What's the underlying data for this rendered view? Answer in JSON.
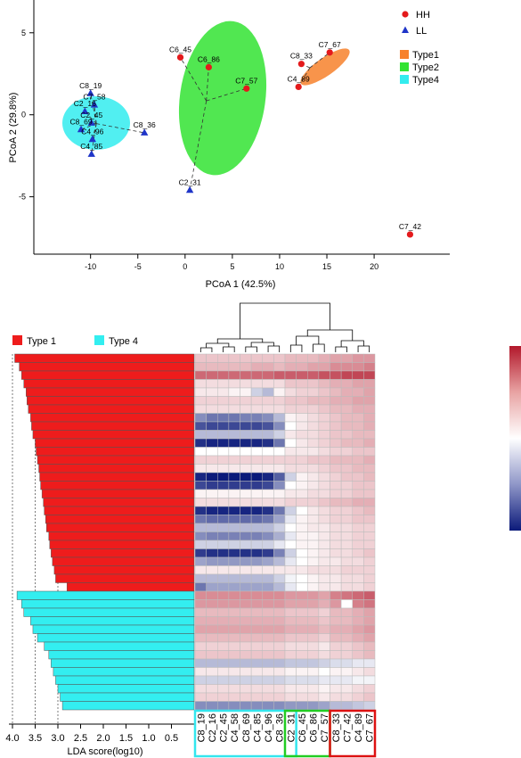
{
  "chart_data": [
    {
      "type": "scatter",
      "title": "",
      "xlabel": "PCoA 1 (42.5%)",
      "ylabel": "PCoA 2 (29.8%)",
      "xlim": [
        -16,
        28
      ],
      "ylim": [
        -8.5,
        7
      ],
      "xticks": [
        -10,
        -5,
        0,
        5,
        10,
        15,
        20
      ],
      "yticks": [
        -5,
        0,
        5
      ],
      "legend_series": [
        {
          "name": "HH",
          "marker": "circle",
          "color": "#e41a1c"
        },
        {
          "name": "LL",
          "marker": "triangle",
          "color": "#1f35c8"
        }
      ],
      "legend_groups": [
        {
          "name": "Type1",
          "color": "#f7812c"
        },
        {
          "name": "Type2",
          "color": "#33e333"
        },
        {
          "name": "Type4",
          "color": "#33ecee"
        }
      ],
      "points": [
        {
          "label": "C6_45",
          "x": -0.5,
          "y": 3.5,
          "series": "HH"
        },
        {
          "label": "C6_86",
          "x": 2.5,
          "y": 2.9,
          "series": "HH"
        },
        {
          "label": "C7_57",
          "x": 6.5,
          "y": 1.6,
          "series": "HH"
        },
        {
          "label": "C8_33",
          "x": 12.3,
          "y": 3.1,
          "series": "HH"
        },
        {
          "label": "C7_67",
          "x": 15.3,
          "y": 3.8,
          "series": "HH"
        },
        {
          "label": "C4_89",
          "x": 12,
          "y": 1.7,
          "series": "HH"
        },
        {
          "label": "C7_42",
          "x": 23.8,
          "y": -7.3,
          "series": "HH"
        },
        {
          "label": "C8_19",
          "x": -10,
          "y": 1.3,
          "series": "LL"
        },
        {
          "label": "C7_58",
          "x": -9.6,
          "y": 0.6,
          "series": "LL"
        },
        {
          "label": "C2_16",
          "x": -10.6,
          "y": 0.2,
          "series": "LL"
        },
        {
          "label": "C2_45",
          "x": -9.9,
          "y": -0.5,
          "series": "LL"
        },
        {
          "label": "C8_69",
          "x": -11,
          "y": -0.9,
          "series": "LL"
        },
        {
          "label": "C4_96",
          "x": -9.8,
          "y": -1.5,
          "series": "LL"
        },
        {
          "label": "C4_85",
          "x": -9.9,
          "y": -2.4,
          "series": "LL"
        },
        {
          "label": "C8_36",
          "x": -4.3,
          "y": -1.1,
          "series": "LL"
        },
        {
          "label": "C2_31",
          "x": 0.5,
          "y": -4.6,
          "series": "LL"
        }
      ]
    },
    {
      "type": "bar",
      "orientation": "horizontal",
      "xlabel": "LDA score(log10)",
      "xlim": [
        4.0,
        0.0
      ],
      "xticks": [
        "4.0",
        "3.5",
        "3.0",
        "2.5",
        "2.0",
        "1.5",
        "1.0",
        "0.5"
      ],
      "legend": [
        {
          "name": "Type 1",
          "color": "#ee1c1c"
        },
        {
          "name": "Type 4",
          "color": "#33eef0"
        }
      ],
      "series": [
        {
          "name": "Type 1",
          "color": "#ee1c1c",
          "values": [
            3.95,
            3.85,
            3.8,
            3.75,
            3.7,
            3.68,
            3.65,
            3.6,
            3.58,
            3.55,
            3.5,
            3.48,
            3.45,
            3.42,
            3.4,
            3.38,
            3.35,
            3.32,
            3.3,
            3.27,
            3.25,
            3.2,
            3.18,
            3.15,
            3.12,
            3.08,
            3.05,
            2.8
          ]
        },
        {
          "name": "Type 4",
          "color": "#33eef0",
          "values": [
            3.9,
            3.8,
            3.75,
            3.6,
            3.55,
            3.45,
            3.3,
            3.2,
            3.15,
            3.1,
            3.05,
            3.0,
            2.95,
            2.9
          ]
        }
      ]
    },
    {
      "type": "heatmap",
      "columns": [
        "C8_19",
        "C2_16",
        "C2_45",
        "C4_58",
        "C8_69",
        "C4_85",
        "C4_96",
        "C8_36",
        "C2_31",
        "C6_45",
        "C6_86",
        "C7_57",
        "C8_33",
        "C7_42",
        "C4_89",
        "C7_67"
      ],
      "column_groups": [
        {
          "name": "Type4",
          "color": "#33e6ee",
          "from": 0,
          "to": 8
        },
        {
          "name": "Type2",
          "color": "#22cc22",
          "from": 8,
          "to": 11
        },
        {
          "name": "Type1",
          "color": "#dd1111",
          "from": 12,
          "to": 15
        }
      ],
      "color_scale": [
        "#0b1a7a",
        "#ffffff",
        "#b2182b"
      ],
      "value_range": [
        -1,
        1
      ],
      "row_types": [
        "Type1",
        "Type1",
        "Type1",
        "Type1",
        "Type1",
        "Type1",
        "Type1",
        "Type1",
        "Type1",
        "Type1",
        "Type1",
        "Type1",
        "Type1",
        "Type1",
        "Type1",
        "Type1",
        "Type1",
        "Type1",
        "Type1",
        "Type1",
        "Type1",
        "Type1",
        "Type1",
        "Type1",
        "Type1",
        "Type1",
        "Type1",
        "Type1",
        "Type4",
        "Type4",
        "Type4",
        "Type4",
        "Type4",
        "Type4",
        "Type4",
        "Type4",
        "Type4",
        "Type4",
        "Type4",
        "Type4",
        "Type4",
        "Type4"
      ],
      "rows": [
        [
          0.25,
          0.25,
          0.25,
          0.25,
          0.25,
          0.25,
          0.25,
          0.25,
          0.3,
          0.3,
          0.3,
          0.35,
          0.4,
          0.4,
          0.45,
          0.45
        ],
        [
          0.3,
          0.3,
          0.3,
          0.3,
          0.3,
          0.35,
          0.35,
          0.3,
          0.35,
          0.35,
          0.4,
          0.4,
          0.5,
          0.5,
          0.5,
          0.55
        ],
        [
          0.65,
          0.65,
          0.65,
          0.65,
          0.65,
          0.65,
          0.65,
          0.7,
          0.7,
          0.7,
          0.7,
          0.75,
          0.75,
          0.8,
          0.8,
          0.8
        ],
        [
          0.15,
          0.15,
          0.15,
          0.15,
          0.15,
          0.15,
          0.15,
          0.15,
          0.25,
          0.25,
          0.25,
          0.3,
          0.35,
          0.35,
          0.4,
          0.4
        ],
        [
          0.1,
          0.1,
          0.1,
          0.05,
          0.05,
          -0.2,
          -0.3,
          0.05,
          0.15,
          0.2,
          0.2,
          0.25,
          0.3,
          0.35,
          0.35,
          0.4
        ],
        [
          0.2,
          0.2,
          0.2,
          0.2,
          0.2,
          0.2,
          0.2,
          0.2,
          0.25,
          0.25,
          0.3,
          0.3,
          0.35,
          0.35,
          0.4,
          0.4
        ],
        [
          0.15,
          0.15,
          0.15,
          0.15,
          0.15,
          0.15,
          0.15,
          0.15,
          0.2,
          0.2,
          0.2,
          0.25,
          0.3,
          0.3,
          0.35,
          0.35
        ],
        [
          -0.5,
          -0.6,
          -0.6,
          -0.6,
          -0.55,
          -0.55,
          -0.5,
          -0.3,
          0.05,
          0.1,
          0.15,
          0.2,
          0.25,
          0.3,
          0.3,
          0.35
        ],
        [
          -0.75,
          -0.8,
          -0.8,
          -0.8,
          -0.8,
          -0.8,
          -0.75,
          -0.5,
          0.0,
          0.1,
          0.15,
          0.2,
          0.25,
          0.3,
          0.3,
          0.35
        ],
        [
          -0.3,
          -0.3,
          -0.3,
          -0.3,
          -0.3,
          -0.3,
          -0.3,
          -0.2,
          0.1,
          0.15,
          0.15,
          0.2,
          0.25,
          0.25,
          0.3,
          0.3
        ],
        [
          -0.9,
          -0.95,
          -0.95,
          -0.95,
          -0.95,
          -0.95,
          -0.9,
          -0.6,
          0.0,
          0.1,
          0.15,
          0.2,
          0.25,
          0.3,
          0.3,
          0.35
        ],
        [
          0.0,
          0.0,
          0.0,
          0.0,
          0.0,
          0.0,
          0.0,
          0.0,
          0.1,
          0.1,
          0.1,
          0.15,
          0.2,
          0.2,
          0.25,
          0.25
        ],
        [
          0.2,
          0.2,
          0.2,
          0.2,
          0.2,
          0.2,
          0.2,
          0.2,
          0.2,
          0.2,
          0.25,
          0.25,
          0.3,
          0.3,
          0.3,
          0.35
        ],
        [
          0.1,
          0.1,
          0.1,
          0.1,
          0.1,
          0.1,
          0.1,
          0.1,
          0.15,
          0.15,
          0.15,
          0.2,
          0.25,
          0.25,
          0.3,
          0.3
        ],
        [
          -0.95,
          -1.0,
          -1.0,
          -1.0,
          -1.0,
          -1.0,
          -0.95,
          -0.7,
          -0.2,
          0.05,
          0.1,
          0.15,
          0.2,
          0.25,
          0.25,
          0.3
        ],
        [
          -0.8,
          -0.85,
          -0.85,
          -0.85,
          -0.85,
          -0.85,
          -0.8,
          -0.5,
          0.0,
          0.05,
          0.1,
          0.15,
          0.2,
          0.2,
          0.25,
          0.25
        ],
        [
          0.05,
          0.05,
          0.05,
          0.05,
          0.05,
          0.05,
          0.05,
          0.05,
          0.1,
          0.1,
          0.15,
          0.15,
          0.2,
          0.2,
          0.25,
          0.25
        ],
        [
          0.15,
          0.15,
          0.15,
          0.15,
          0.15,
          0.15,
          0.15,
          0.15,
          0.2,
          0.2,
          0.2,
          0.25,
          0.3,
          0.3,
          0.35,
          0.35
        ],
        [
          -0.9,
          -0.95,
          -0.95,
          -0.95,
          -0.95,
          -0.95,
          -0.9,
          -0.6,
          -0.2,
          0.0,
          0.1,
          0.15,
          0.2,
          0.2,
          0.25,
          0.3
        ],
        [
          -0.6,
          -0.65,
          -0.65,
          -0.65,
          -0.65,
          -0.65,
          -0.6,
          -0.4,
          -0.1,
          0.05,
          0.1,
          0.15,
          0.2,
          0.2,
          0.25,
          0.25
        ],
        [
          -0.3,
          -0.3,
          -0.3,
          -0.3,
          -0.3,
          -0.3,
          -0.3,
          -0.2,
          0.0,
          0.05,
          0.1,
          0.1,
          0.15,
          0.15,
          0.2,
          0.2
        ],
        [
          -0.5,
          -0.55,
          -0.55,
          -0.55,
          -0.55,
          -0.55,
          -0.5,
          -0.35,
          -0.1,
          0.05,
          0.05,
          0.1,
          0.15,
          0.15,
          0.2,
          0.2
        ],
        [
          -0.2,
          -0.2,
          -0.2,
          -0.2,
          -0.2,
          -0.2,
          -0.2,
          -0.1,
          0.0,
          0.05,
          0.05,
          0.1,
          0.15,
          0.15,
          0.2,
          0.2
        ],
        [
          -0.85,
          -0.9,
          -0.9,
          -0.9,
          -0.9,
          -0.9,
          -0.85,
          -0.55,
          -0.2,
          0.0,
          0.05,
          0.1,
          0.15,
          0.15,
          0.2,
          0.25
        ],
        [
          -0.4,
          -0.45,
          -0.45,
          -0.45,
          -0.45,
          -0.45,
          -0.4,
          -0.3,
          -0.1,
          0.0,
          0.05,
          0.1,
          0.1,
          0.15,
          0.15,
          0.2
        ],
        [
          0.1,
          0.1,
          0.1,
          0.1,
          0.1,
          0.1,
          0.1,
          0.1,
          0.1,
          0.1,
          0.15,
          0.15,
          0.15,
          0.2,
          0.2,
          0.2
        ],
        [
          -0.3,
          -0.3,
          -0.3,
          -0.3,
          -0.3,
          -0.3,
          -0.3,
          -0.2,
          -0.05,
          0.0,
          0.05,
          0.1,
          0.1,
          0.15,
          0.15,
          0.2
        ],
        [
          -0.6,
          -0.4,
          -0.4,
          -0.4,
          -0.4,
          -0.4,
          -0.4,
          -0.3,
          -0.1,
          0.0,
          0.05,
          0.1,
          0.1,
          0.15,
          0.15,
          0.2
        ],
        [
          0.5,
          0.5,
          0.5,
          0.5,
          0.5,
          0.5,
          0.5,
          0.5,
          0.45,
          0.45,
          0.45,
          0.4,
          0.55,
          0.6,
          0.65,
          0.7
        ],
        [
          0.45,
          0.45,
          0.45,
          0.45,
          0.45,
          0.45,
          0.45,
          0.45,
          0.4,
          0.4,
          0.4,
          0.35,
          0.45,
          0.0,
          0.55,
          0.6
        ],
        [
          0.3,
          0.3,
          0.3,
          0.3,
          0.3,
          0.3,
          0.3,
          0.3,
          0.25,
          0.25,
          0.25,
          0.2,
          0.3,
          0.3,
          0.35,
          0.4
        ],
        [
          0.35,
          0.35,
          0.35,
          0.35,
          0.35,
          0.35,
          0.35,
          0.35,
          0.3,
          0.3,
          0.3,
          0.25,
          0.3,
          0.3,
          0.35,
          0.4
        ],
        [
          0.4,
          0.4,
          0.4,
          0.4,
          0.4,
          0.4,
          0.4,
          0.4,
          0.35,
          0.35,
          0.35,
          0.3,
          0.35,
          0.35,
          0.4,
          0.45
        ],
        [
          0.3,
          0.3,
          0.3,
          0.3,
          0.3,
          0.3,
          0.3,
          0.3,
          0.25,
          0.25,
          0.25,
          0.2,
          0.3,
          0.3,
          0.35,
          0.4
        ],
        [
          0.2,
          0.2,
          0.2,
          0.2,
          0.2,
          0.2,
          0.2,
          0.2,
          0.15,
          0.15,
          0.15,
          0.1,
          0.2,
          0.2,
          0.25,
          0.3
        ],
        [
          0.25,
          0.25,
          0.25,
          0.25,
          0.25,
          0.25,
          0.25,
          0.25,
          0.2,
          0.2,
          0.2,
          0.15,
          0.2,
          0.2,
          0.25,
          0.3
        ],
        [
          -0.3,
          -0.3,
          -0.3,
          -0.3,
          -0.3,
          -0.3,
          -0.3,
          -0.3,
          -0.25,
          -0.25,
          -0.25,
          -0.2,
          -0.15,
          -0.15,
          -0.1,
          -0.1
        ],
        [
          0.1,
          0.1,
          0.1,
          0.1,
          0.1,
          0.1,
          0.1,
          0.1,
          0.05,
          0.05,
          0.05,
          0.0,
          0.05,
          0.05,
          0.1,
          0.15
        ],
        [
          -0.2,
          -0.2,
          -0.2,
          -0.2,
          -0.2,
          -0.2,
          -0.2,
          -0.2,
          -0.15,
          -0.15,
          -0.15,
          -0.1,
          -0.1,
          -0.1,
          -0.05,
          -0.05
        ],
        [
          0.15,
          0.15,
          0.15,
          0.15,
          0.15,
          0.15,
          0.15,
          0.15,
          0.1,
          0.1,
          0.1,
          0.05,
          0.1,
          0.1,
          0.15,
          0.2
        ],
        [
          0.2,
          0.2,
          0.2,
          0.2,
          0.2,
          0.2,
          0.2,
          0.2,
          0.15,
          0.15,
          0.15,
          0.1,
          0.15,
          0.15,
          0.2,
          0.25
        ],
        [
          -0.5,
          -0.5,
          -0.5,
          -0.5,
          -0.5,
          -0.5,
          -0.5,
          -0.5,
          -0.45,
          -0.45,
          -0.45,
          -0.4,
          -0.3,
          -0.3,
          -0.25,
          -0.2
        ]
      ]
    }
  ]
}
